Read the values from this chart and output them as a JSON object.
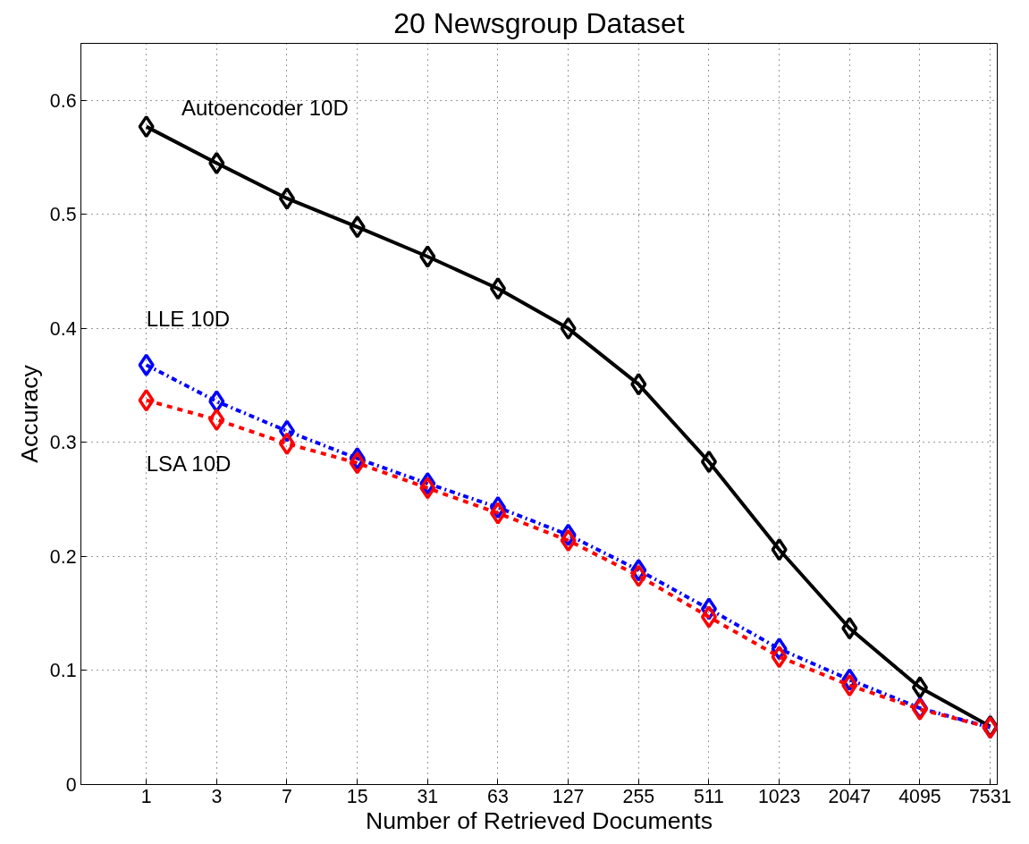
{
  "chart_data": {
    "type": "line",
    "title": "20 Newsgroup Dataset",
    "xlabel": "Number of Retrieved Documents",
    "ylabel": "Accuracy",
    "categories": [
      "1",
      "3",
      "7",
      "15",
      "31",
      "63",
      "127",
      "255",
      "511",
      "1023",
      "2047",
      "4095",
      "7531"
    ],
    "ylim": [
      0,
      0.65
    ],
    "yticks": [
      0,
      0.1,
      0.2,
      0.3,
      0.4,
      0.5,
      0.6
    ],
    "grid": true,
    "marker": "diamond",
    "series": [
      {
        "name": "Autoencoder 10D",
        "color": "#000000",
        "line_style": "solid",
        "values": [
          0.577,
          0.545,
          0.514,
          0.489,
          0.463,
          0.435,
          0.4,
          0.351,
          0.283,
          0.206,
          0.137,
          0.085,
          0.051
        ]
      },
      {
        "name": "LLE 10D",
        "color": "#0000ff",
        "line_style": "dashdot",
        "values": [
          0.368,
          0.336,
          0.31,
          0.286,
          0.264,
          0.243,
          0.219,
          0.188,
          0.154,
          0.119,
          0.092,
          0.067,
          0.05
        ]
      },
      {
        "name": "LSA 10D",
        "color": "#ff0000",
        "line_style": "dashed",
        "values": [
          0.337,
          0.32,
          0.299,
          0.282,
          0.26,
          0.238,
          0.214,
          0.183,
          0.147,
          0.112,
          0.087,
          0.066,
          0.05
        ]
      }
    ]
  }
}
